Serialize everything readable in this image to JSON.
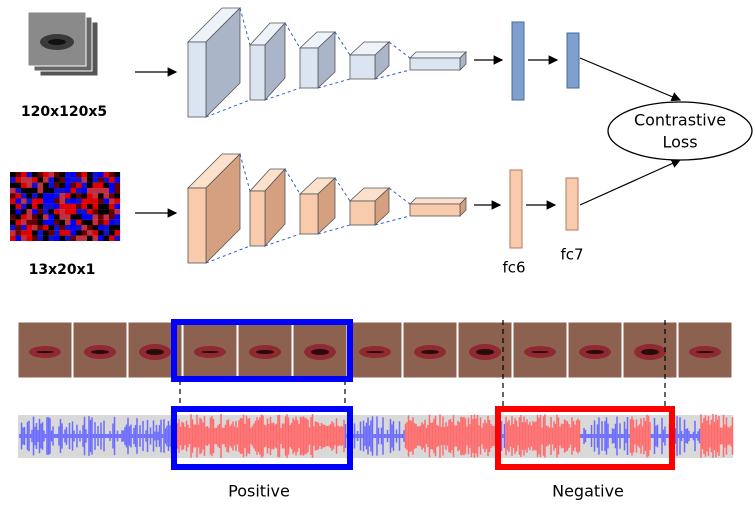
{
  "inputs": {
    "video": "120x120x5",
    "audio": "13x20x1"
  },
  "layers": {
    "fc6": "fc6",
    "fc7": "fc7"
  },
  "loss": {
    "lines": [
      "Contrastive",
      "Loss"
    ]
  },
  "pairs": {
    "positive": "Positive",
    "negative": "Negative"
  }
}
